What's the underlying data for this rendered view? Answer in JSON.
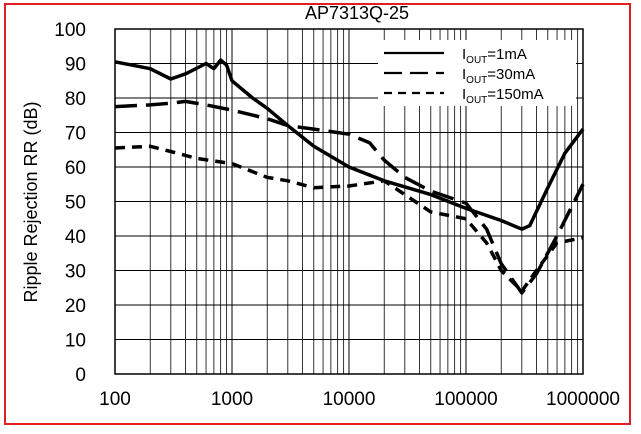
{
  "chart_data": {
    "type": "line",
    "title": "AP7313Q-25",
    "xlabel": "",
    "ylabel": "Ripple Rejection RR (dB)",
    "x_scale": "log",
    "xlim": [
      100,
      1000000
    ],
    "ylim": [
      0,
      100
    ],
    "grid": true,
    "legend_position": "top-right",
    "x_ticks": [
      "100",
      "1000",
      "10000",
      "100000",
      "1000000"
    ],
    "y_ticks": [
      "0",
      "10",
      "20",
      "30",
      "40",
      "50",
      "60",
      "70",
      "80",
      "90",
      "100"
    ],
    "series": [
      {
        "name": "IOUT=1mA",
        "name_main": "I",
        "name_sub": "OUT",
        "name_rest": "=1mA",
        "style": "solid",
        "points": [
          [
            100,
            90.5
          ],
          [
            200,
            88.5
          ],
          [
            300,
            85.5
          ],
          [
            400,
            87
          ],
          [
            600,
            90
          ],
          [
            700,
            88.5
          ],
          [
            800,
            91
          ],
          [
            900,
            89.5
          ],
          [
            1000,
            85
          ],
          [
            1500,
            80
          ],
          [
            2000,
            77
          ],
          [
            3000,
            72
          ],
          [
            5000,
            66
          ],
          [
            10000,
            60
          ],
          [
            20000,
            56
          ],
          [
            50000,
            52
          ],
          [
            100000,
            48
          ],
          [
            200000,
            44.5
          ],
          [
            300000,
            42
          ],
          [
            350000,
            43
          ],
          [
            500000,
            54
          ],
          [
            700000,
            64
          ],
          [
            1000000,
            71
          ]
        ]
      },
      {
        "name": "IOUT=30mA",
        "name_main": "I",
        "name_sub": "OUT",
        "name_rest": "=30mA",
        "style": "dashed",
        "points": [
          [
            100,
            77.5
          ],
          [
            200,
            78
          ],
          [
            300,
            78.5
          ],
          [
            400,
            79
          ],
          [
            600,
            78
          ],
          [
            1000,
            76.5
          ],
          [
            2000,
            74
          ],
          [
            3000,
            72
          ],
          [
            5000,
            71
          ],
          [
            10000,
            69.5
          ],
          [
            15000,
            67
          ],
          [
            20000,
            62
          ],
          [
            30000,
            57
          ],
          [
            50000,
            53
          ],
          [
            100000,
            49.5
          ],
          [
            150000,
            42
          ],
          [
            200000,
            32
          ],
          [
            300000,
            23.5
          ],
          [
            400000,
            29
          ],
          [
            600000,
            40
          ],
          [
            1000000,
            55
          ]
        ]
      },
      {
        "name": "IOUT=150mA",
        "name_main": "I",
        "name_sub": "OUT",
        "name_rest": "=150mA",
        "style": "short-dashed",
        "points": [
          [
            100,
            65.5
          ],
          [
            200,
            66
          ],
          [
            300,
            64.5
          ],
          [
            500,
            62.5
          ],
          [
            1000,
            61
          ],
          [
            2000,
            57
          ],
          [
            3000,
            56
          ],
          [
            5000,
            54
          ],
          [
            10000,
            54.5
          ],
          [
            20000,
            56
          ],
          [
            30000,
            52
          ],
          [
            50000,
            47
          ],
          [
            100000,
            45
          ],
          [
            150000,
            38
          ],
          [
            200000,
            30
          ],
          [
            300000,
            24
          ],
          [
            400000,
            30
          ],
          [
            600000,
            38
          ],
          [
            1000000,
            39.5
          ]
        ]
      }
    ]
  }
}
